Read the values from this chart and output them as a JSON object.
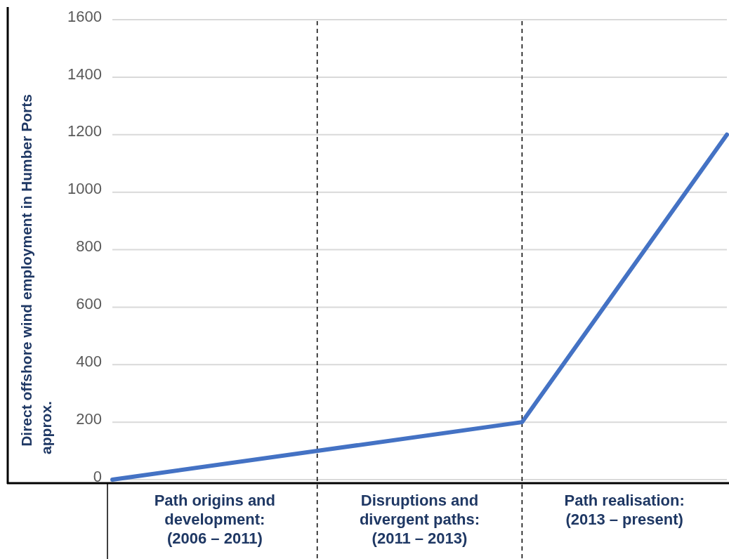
{
  "chart_data": {
    "type": "line",
    "ylabel": "Direct offshore wind employment in Humber Ports\napprox.",
    "categories": [
      null,
      null,
      null,
      null
    ],
    "annotations": [
      "Path origins and\ndevelopment:\n(2006 – 2011)",
      "Disruptions and\ndivergent paths:\n(2011 – 2013)",
      "Path realisation:\n(2013 – present)"
    ],
    "series": [
      {
        "color": "#4472c4",
        "values": [
          0,
          100,
          200,
          1200
        ]
      }
    ],
    "ylim": [
      0,
      1600
    ],
    "yticks": [
      0,
      200,
      400,
      600,
      800,
      1000,
      1200,
      1400,
      1600
    ],
    "grid": "y",
    "marker": "none",
    "line_style": "solid"
  }
}
